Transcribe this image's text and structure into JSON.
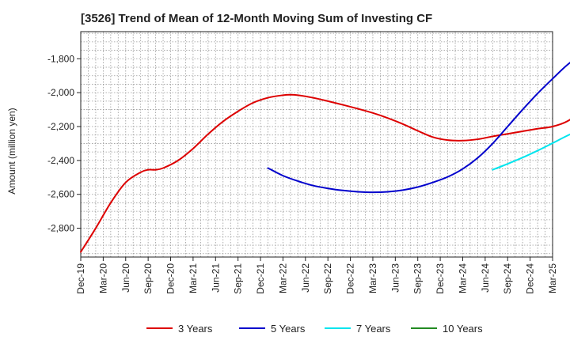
{
  "chart_data": {
    "type": "line",
    "title": "[3526]  Trend of Mean of 12-Month Moving Sum of Investing CF",
    "xlabel": "",
    "ylabel": "Amount (million yen)",
    "ylim": [
      -2970,
      -1640
    ],
    "yticks": [
      -2800,
      -2600,
      -2400,
      -2200,
      -2000,
      -1800
    ],
    "ytick_labels": [
      "-2,800",
      "-2,600",
      "-2,400",
      "-2,200",
      "-2,000",
      "-1,800"
    ],
    "x_ticks": [
      "Dec-19",
      "Mar-20",
      "Jun-20",
      "Sep-20",
      "Dec-20",
      "Mar-21",
      "Jun-21",
      "Sep-21",
      "Dec-21",
      "Mar-22",
      "Jun-22",
      "Sep-22",
      "Dec-22",
      "Mar-23",
      "Jun-23",
      "Sep-23",
      "Dec-23",
      "Mar-24",
      "Jun-24",
      "Sep-24",
      "Dec-24",
      "Mar-25"
    ],
    "grid": true,
    "legend_position": "bottom",
    "series": [
      {
        "name": "3 Years",
        "color": "#dd0000",
        "points": [
          [
            0,
            -2940
          ],
          [
            2,
            -2800
          ],
          [
            4,
            -2650
          ],
          [
            6,
            -2530
          ],
          [
            8,
            -2470
          ],
          [
            9,
            -2455
          ],
          [
            10,
            -2455
          ],
          [
            11,
            -2445
          ],
          [
            13,
            -2400
          ],
          [
            15,
            -2330
          ],
          [
            17,
            -2245
          ],
          [
            19,
            -2170
          ],
          [
            21,
            -2110
          ],
          [
            23,
            -2060
          ],
          [
            25,
            -2030
          ],
          [
            27,
            -2015
          ],
          [
            28,
            -2012
          ],
          [
            29,
            -2015
          ],
          [
            31,
            -2030
          ],
          [
            33,
            -2050
          ],
          [
            35,
            -2072
          ],
          [
            37,
            -2095
          ],
          [
            39,
            -2120
          ],
          [
            41,
            -2150
          ],
          [
            43,
            -2185
          ],
          [
            45,
            -2225
          ],
          [
            47,
            -2262
          ],
          [
            49,
            -2280
          ],
          [
            51,
            -2283
          ],
          [
            53,
            -2275
          ],
          [
            55,
            -2258
          ],
          [
            57,
            -2243
          ],
          [
            59,
            -2228
          ],
          [
            61,
            -2213
          ],
          [
            63,
            -2200
          ],
          [
            65,
            -2168
          ],
          [
            67,
            -2100
          ],
          [
            69,
            -2000
          ],
          [
            71,
            -1860
          ]
        ]
      },
      {
        "name": "5 Years",
        "color": "#0000cc",
        "points": [
          [
            25,
            -2445
          ],
          [
            27,
            -2490
          ],
          [
            29,
            -2522
          ],
          [
            31,
            -2548
          ],
          [
            33,
            -2565
          ],
          [
            35,
            -2577
          ],
          [
            37,
            -2585
          ],
          [
            39,
            -2588
          ],
          [
            41,
            -2585
          ],
          [
            43,
            -2575
          ],
          [
            45,
            -2557
          ],
          [
            47,
            -2530
          ],
          [
            49,
            -2497
          ],
          [
            51,
            -2450
          ],
          [
            53,
            -2385
          ],
          [
            55,
            -2300
          ],
          [
            57,
            -2200
          ],
          [
            59,
            -2100
          ],
          [
            61,
            -2005
          ],
          [
            63,
            -1918
          ],
          [
            65,
            -1835
          ],
          [
            67,
            -1770
          ],
          [
            69,
            -1720
          ],
          [
            71,
            -1695
          ],
          [
            72,
            -1690
          ],
          [
            73,
            -1692
          ],
          [
            74,
            -1700
          ]
        ]
      },
      {
        "name": "7 Years",
        "color": "#00e5ee",
        "points": [
          [
            55,
            -2455
          ],
          [
            57,
            -2420
          ],
          [
            59,
            -2383
          ],
          [
            61,
            -2342
          ],
          [
            63,
            -2298
          ],
          [
            65,
            -2253
          ],
          [
            67,
            -2215
          ],
          [
            69,
            -2185
          ],
          [
            71,
            -2165
          ],
          [
            73,
            -2155
          ],
          [
            74,
            -2155
          ]
        ]
      },
      {
        "name": "10 Years",
        "color": "#228b22",
        "points": []
      }
    ]
  }
}
